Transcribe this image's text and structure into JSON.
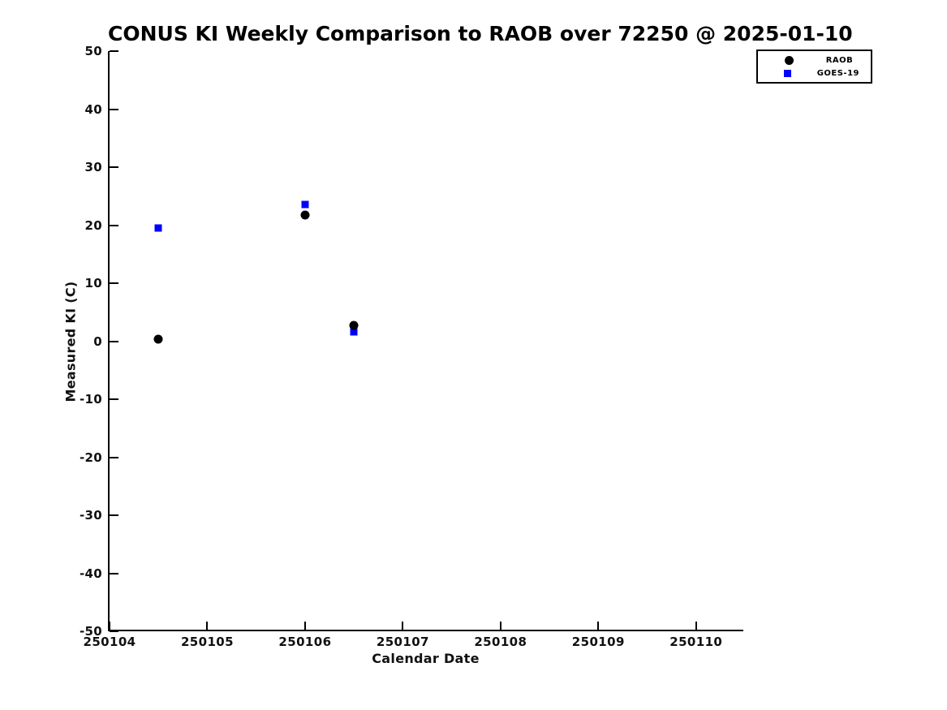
{
  "chart_data": {
    "type": "scatter",
    "title": "CONUS KI Weekly Comparison to RAOB over 72250 @ 2025-01-10",
    "xlabel": "Calendar Date",
    "ylabel": "Measured KI (C)",
    "xlim": [
      250104,
      250110.5
    ],
    "ylim": [
      -50,
      50
    ],
    "x_ticks": [
      250104,
      250105,
      250106,
      250107,
      250108,
      250109,
      250110
    ],
    "y_ticks": [
      -50,
      -40,
      -30,
      -20,
      -10,
      0,
      10,
      20,
      30,
      40,
      50
    ],
    "grid": false,
    "legend_position": "top-right-outside-plot",
    "background_color": "#ffffff",
    "axis_color": "#000000",
    "series": [
      {
        "name": "RAOB",
        "marker": "circle",
        "color": "#000000",
        "marker_size": 11,
        "points": [
          [
            250104.5,
            0.3
          ],
          [
            250106.0,
            21.8
          ],
          [
            250106.5,
            2.7
          ]
        ]
      },
      {
        "name": "GOES-19",
        "marker": "square",
        "color": "#0000ff",
        "marker_size": 9,
        "points": [
          [
            250104.5,
            19.5
          ],
          [
            250106.0,
            23.6
          ],
          [
            250106.5,
            1.6
          ]
        ]
      }
    ]
  }
}
